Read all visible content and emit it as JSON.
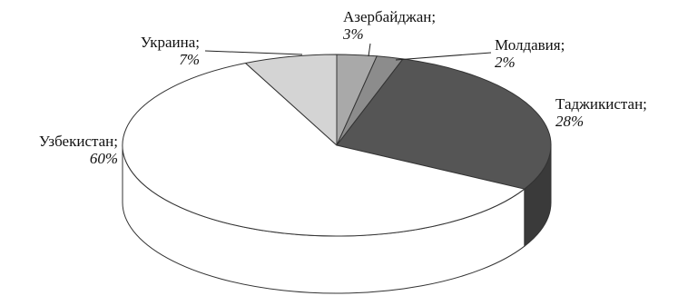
{
  "chart_data": {
    "type": "pie",
    "style": "3d",
    "title": "",
    "categories": [
      "Азербайджан",
      "Молдавия",
      "Таджикистан",
      "Узбекистан",
      "Украина"
    ],
    "values": [
      3,
      2,
      28,
      60,
      7
    ],
    "value_labels": [
      "3%",
      "2%",
      "28%",
      "60%",
      "7%"
    ],
    "label_suffix": ";",
    "colors": [
      "#a9a9a9",
      "#8c8c8c",
      "#555555",
      "#ffffff",
      "#d4d4d4"
    ],
    "side_colors": [
      "#8a8a8a",
      "#6e6e6e",
      "#3a3a3a",
      "#ffffff",
      "#b5b5b5"
    ],
    "outline_color": "#333333",
    "legend": "none"
  }
}
